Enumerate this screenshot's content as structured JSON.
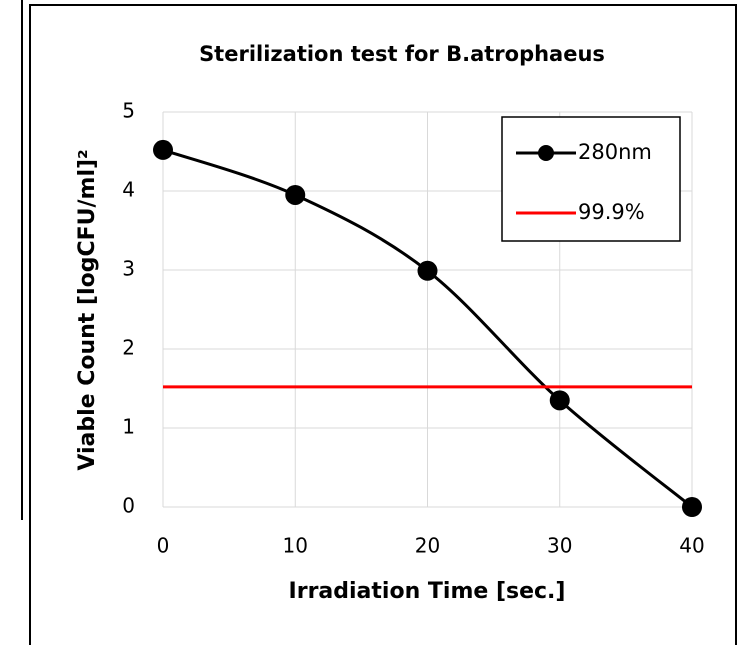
{
  "chart_data": {
    "type": "line",
    "title": "Sterilization test for B.atrophaeus",
    "x_label": "Irradiation Time [sec.]",
    "y_label": "Viable Count [logCFU/ml]²",
    "x": [
      0,
      10,
      20,
      30,
      40
    ],
    "series": [
      {
        "name": "280nm",
        "color": "#000000",
        "values": [
          4.52,
          3.95,
          2.99,
          1.35,
          0
        ],
        "markers": true,
        "smooth": true
      },
      {
        "name": "99.9%",
        "color": "#ff0000",
        "values": [
          1.52,
          1.52,
          1.52,
          1.52,
          1.52
        ],
        "markers": false,
        "smooth": false
      }
    ],
    "xlim": [
      0,
      40
    ],
    "xticks": [
      0,
      10,
      20,
      30,
      40
    ],
    "ylim": [
      0,
      5
    ],
    "yticks": [
      0,
      1,
      2,
      3,
      4,
      5
    ],
    "grid": true,
    "legend": "upper-right"
  }
}
